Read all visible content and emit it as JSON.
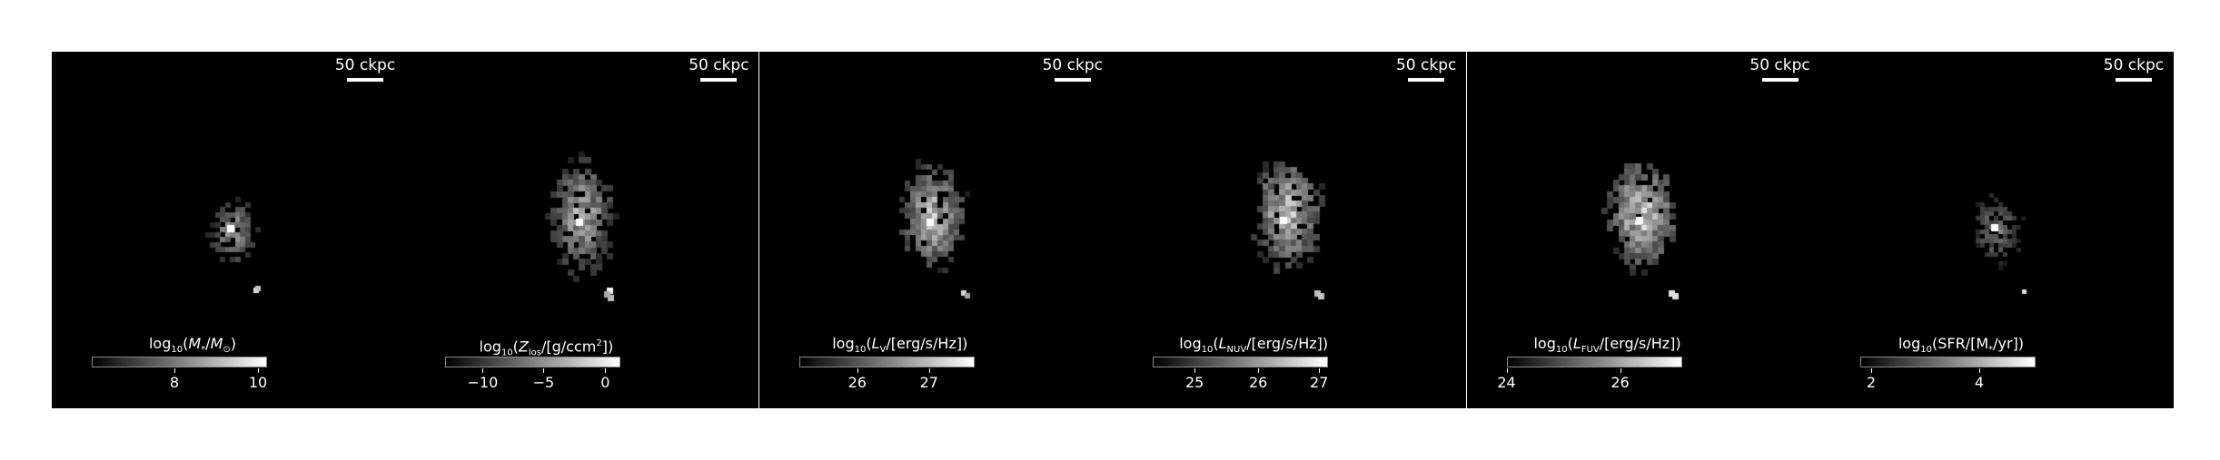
{
  "panels": [
    {
      "scale_label": "50 ckpc",
      "cb_title_html": "log<sub>10</sub>(<i>M</i><sub>*</sub>/<i>M</i><sub>⊙</sub>)",
      "cb_ticks": [
        "8",
        "10"
      ],
      "tick_fracs": [
        0.47,
        0.95
      ],
      "map": "mstar"
    },
    {
      "scale_label": "50 ckpc",
      "cb_title_html": "log<sub>10</sub>(<i>Z</i><sub>los</sub>/[g/ccm<sup>2</sup>])",
      "cb_ticks": [
        "−10",
        "−5",
        "0"
      ],
      "tick_fracs": [
        0.21,
        0.56,
        0.91
      ],
      "map": "zlos"
    },
    {
      "scale_label": "50 ckpc",
      "cb_title_html": "log<sub>10</sub>(<i>L</i><sub>V</sub>/[erg/s/Hz])",
      "cb_ticks": [
        "26",
        "27"
      ],
      "tick_fracs": [
        0.33,
        0.74
      ],
      "map": "lv"
    },
    {
      "scale_label": "50 ckpc",
      "cb_title_html": "log<sub>10</sub>(<i>L</i><sub>NUV</sub>/[erg/s/Hz])",
      "cb_ticks": [
        "25",
        "26",
        "27"
      ],
      "tick_fracs": [
        0.24,
        0.6,
        0.95
      ],
      "map": "lnuv"
    },
    {
      "scale_label": "50 ckpc",
      "cb_title_html": "log<sub>10</sub>(<i>L</i><sub>FUV</sub>/[erg/s/Hz])",
      "cb_ticks": [
        "24",
        "26"
      ],
      "tick_fracs": [
        0.0,
        0.65
      ],
      "map": "lfuv"
    },
    {
      "scale_label": "50 ckpc",
      "cb_title_html": "log<sub>10</sub>(SFR/[M<sub>*</sub>/yr])",
      "cb_ticks": [
        "2",
        "4"
      ],
      "tick_fracs": [
        0.06,
        0.68
      ],
      "map": "sfr"
    }
  ]
}
